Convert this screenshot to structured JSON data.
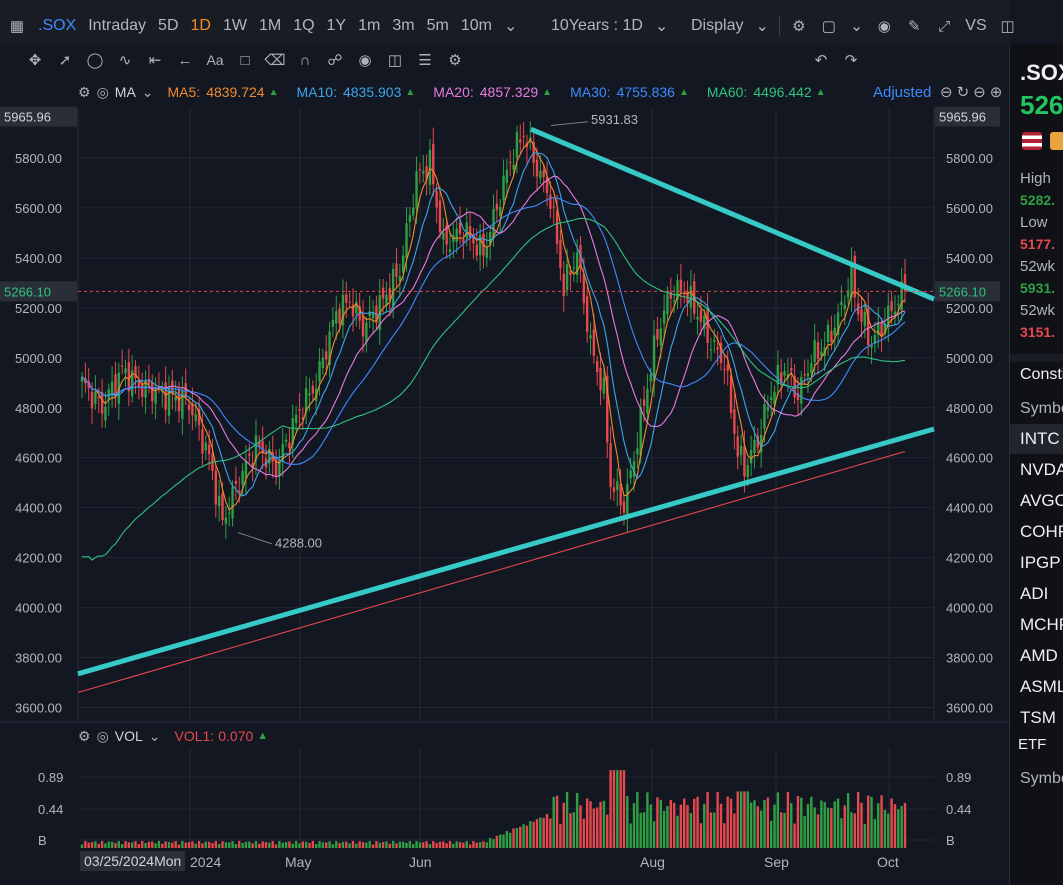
{
  "toolbar": {
    "symbol": ".SOX",
    "intervals": [
      "Intraday",
      "5D",
      "1D",
      "1W",
      "1M",
      "1Q",
      "1Y",
      "1m",
      "3m",
      "5m",
      "10m"
    ],
    "active_interval": "1D",
    "range_label": "10Years : 1D",
    "display_label": "Display",
    "vs_label": "VS"
  },
  "legend": {
    "type_label": "MA",
    "ma": [
      {
        "label": "MA5:",
        "value": "4839.724",
        "color": "#f28a2e"
      },
      {
        "label": "MA10:",
        "value": "4835.903",
        "color": "#3fa4e8"
      },
      {
        "label": "MA20:",
        "value": "4857.329",
        "color": "#e87ae0"
      },
      {
        "label": "MA30:",
        "value": "4755.836",
        "color": "#3d8bfd"
      },
      {
        "label": "MA60:",
        "value": "4496.442",
        "color": "#2ec27e"
      }
    ],
    "adjusted_label": "Adjusted"
  },
  "volume_legend": {
    "type_label": "VOL",
    "vol_label": "VOL1:",
    "vol_value": "0.070"
  },
  "price_axis": {
    "ticks": [
      "5800.00",
      "5600.00",
      "5400.00",
      "5200.00",
      "5000.00",
      "4800.00",
      "4600.00",
      "4400.00",
      "4200.00",
      "4000.00",
      "3800.00",
      "3600.00"
    ],
    "top_tag": "5965.96",
    "current_tag": "5266.10"
  },
  "volume_axis": {
    "ticks": [
      "0.89",
      "0.44",
      "B"
    ]
  },
  "annotations": {
    "high_label": "5931.83",
    "low_label": "4288.00"
  },
  "time_axis": {
    "hover_date": "03/25/2024Mon",
    "labels": [
      "2024",
      "May",
      "Jun",
      "Aug",
      "Sep",
      "Oct"
    ]
  },
  "side_panel": {
    "symbol": ".SOX",
    "price": "526",
    "high_label": "High",
    "high_value": "5282.",
    "low_label": "Low",
    "low_value": "5177.",
    "wk52_label_1": "52wk",
    "wk52_high": "5931.",
    "wk52_label_2": "52wk",
    "wk52_low": "3151.",
    "constituents_label": "Consti",
    "symbol_header": "Symbo",
    "constituents": [
      "INTC",
      "NVDA",
      "AVGO",
      "COHR",
      "IPGP",
      "ADI",
      "MCHP",
      "AMD",
      "ASML",
      "TSM"
    ],
    "etf_label": "ETF",
    "symbol_header_2": "Symbo"
  },
  "colors": {
    "up": "#2ea043",
    "down": "#e5484d",
    "trendline": "#36c9c6",
    "ma_red": "#e5484d"
  },
  "chart_data": {
    "type": "candlestick",
    "x_range": [
      "2024-03-25",
      "2024-10-08"
    ],
    "y_range": [
      3550,
      6000
    ],
    "last_price": 5266.1,
    "period_high": 5931.83,
    "period_low": 4288.0,
    "trendlines": [
      {
        "from": [
          "2024-03-25",
          3735
        ],
        "to": [
          "2024-10-10",
          4715
        ]
      },
      {
        "from": [
          "2024-06-26",
          5915
        ],
        "to": [
          "2024-10-10",
          5235
        ]
      }
    ]
  }
}
